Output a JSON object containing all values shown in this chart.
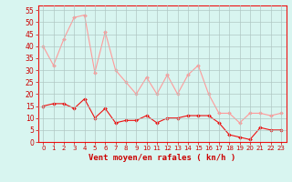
{
  "x": [
    0,
    1,
    2,
    3,
    4,
    5,
    6,
    7,
    8,
    9,
    10,
    11,
    12,
    13,
    14,
    15,
    16,
    17,
    18,
    19,
    20,
    21,
    22,
    23
  ],
  "wind_avg": [
    15,
    16,
    16,
    14,
    18,
    10,
    14,
    8,
    9,
    9,
    11,
    8,
    10,
    10,
    11,
    11,
    11,
    8,
    3,
    2,
    1,
    6,
    5,
    5
  ],
  "wind_gust": [
    40,
    32,
    43,
    52,
    53,
    29,
    46,
    30,
    25,
    20,
    27,
    20,
    28,
    20,
    28,
    32,
    20,
    12,
    12,
    8,
    12,
    12,
    11,
    12
  ],
  "bg_color": "#d8f5f0",
  "grid_color": "#b0c8c4",
  "avg_color": "#ee1111",
  "gust_color": "#ff9999",
  "xlabel": "Vent moyen/en rafales ( kn/h )",
  "xlabel_color": "#cc0000",
  "tick_color": "#cc0000",
  "ylim": [
    0,
    57
  ],
  "yticks": [
    0,
    5,
    10,
    15,
    20,
    25,
    30,
    35,
    40,
    45,
    50,
    55
  ],
  "xlim": [
    -0.5,
    23.5
  ]
}
